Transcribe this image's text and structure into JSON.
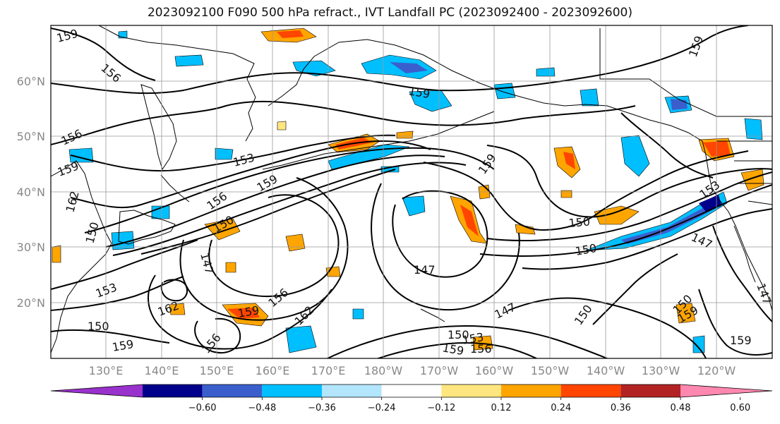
{
  "title": "2023092100 F090 500 hPa refract., IVT Landfall PC (2023092400 - 2023092600)",
  "lat_labels": [
    "60°N",
    "50°N",
    "40°N",
    "30°N",
    "20°N"
  ],
  "lon_labels": [
    "130°E",
    "140°E",
    "150°E",
    "160°E",
    "170°E",
    "180°W",
    "170°W",
    "160°W",
    "150°W",
    "140°W",
    "130°W",
    "120°W"
  ],
  "contour_labels": [
    "159",
    "156",
    "156",
    "159",
    "162",
    "150",
    "153",
    "150",
    "159",
    "153",
    "156",
    "159",
    "150",
    "147",
    "159",
    "159",
    "150",
    "150",
    "147",
    "153",
    "147",
    "162",
    "150",
    "156",
    "159",
    "156",
    "162",
    "147",
    "150",
    "156",
    "159",
    "153",
    "159",
    "150",
    "159",
    "147",
    "159"
  ],
  "colorbar": {
    "ticks": [
      "−0.60",
      "−0.48",
      "−0.36",
      "−0.24",
      "−0.12",
      "0.12",
      "0.24",
      "0.36",
      "0.48",
      "0.60"
    ],
    "colors": [
      "#9932cc",
      "#00008b",
      "#3a5fcd",
      "#00bfff",
      "#b3e5fc",
      "#ffffff",
      "#ffe680",
      "#ffa500",
      "#ff4500",
      "#b22222",
      "#ff88b0"
    ]
  },
  "colors": {
    "neg_strong": "#3a5fcd",
    "neg_mid": "#00bfff",
    "neg_light": "#b3e5fc",
    "pos_light": "#ffe680",
    "pos_mid": "#ffa500",
    "pos_strong": "#ff4500",
    "pos_dark": "#b22222"
  }
}
